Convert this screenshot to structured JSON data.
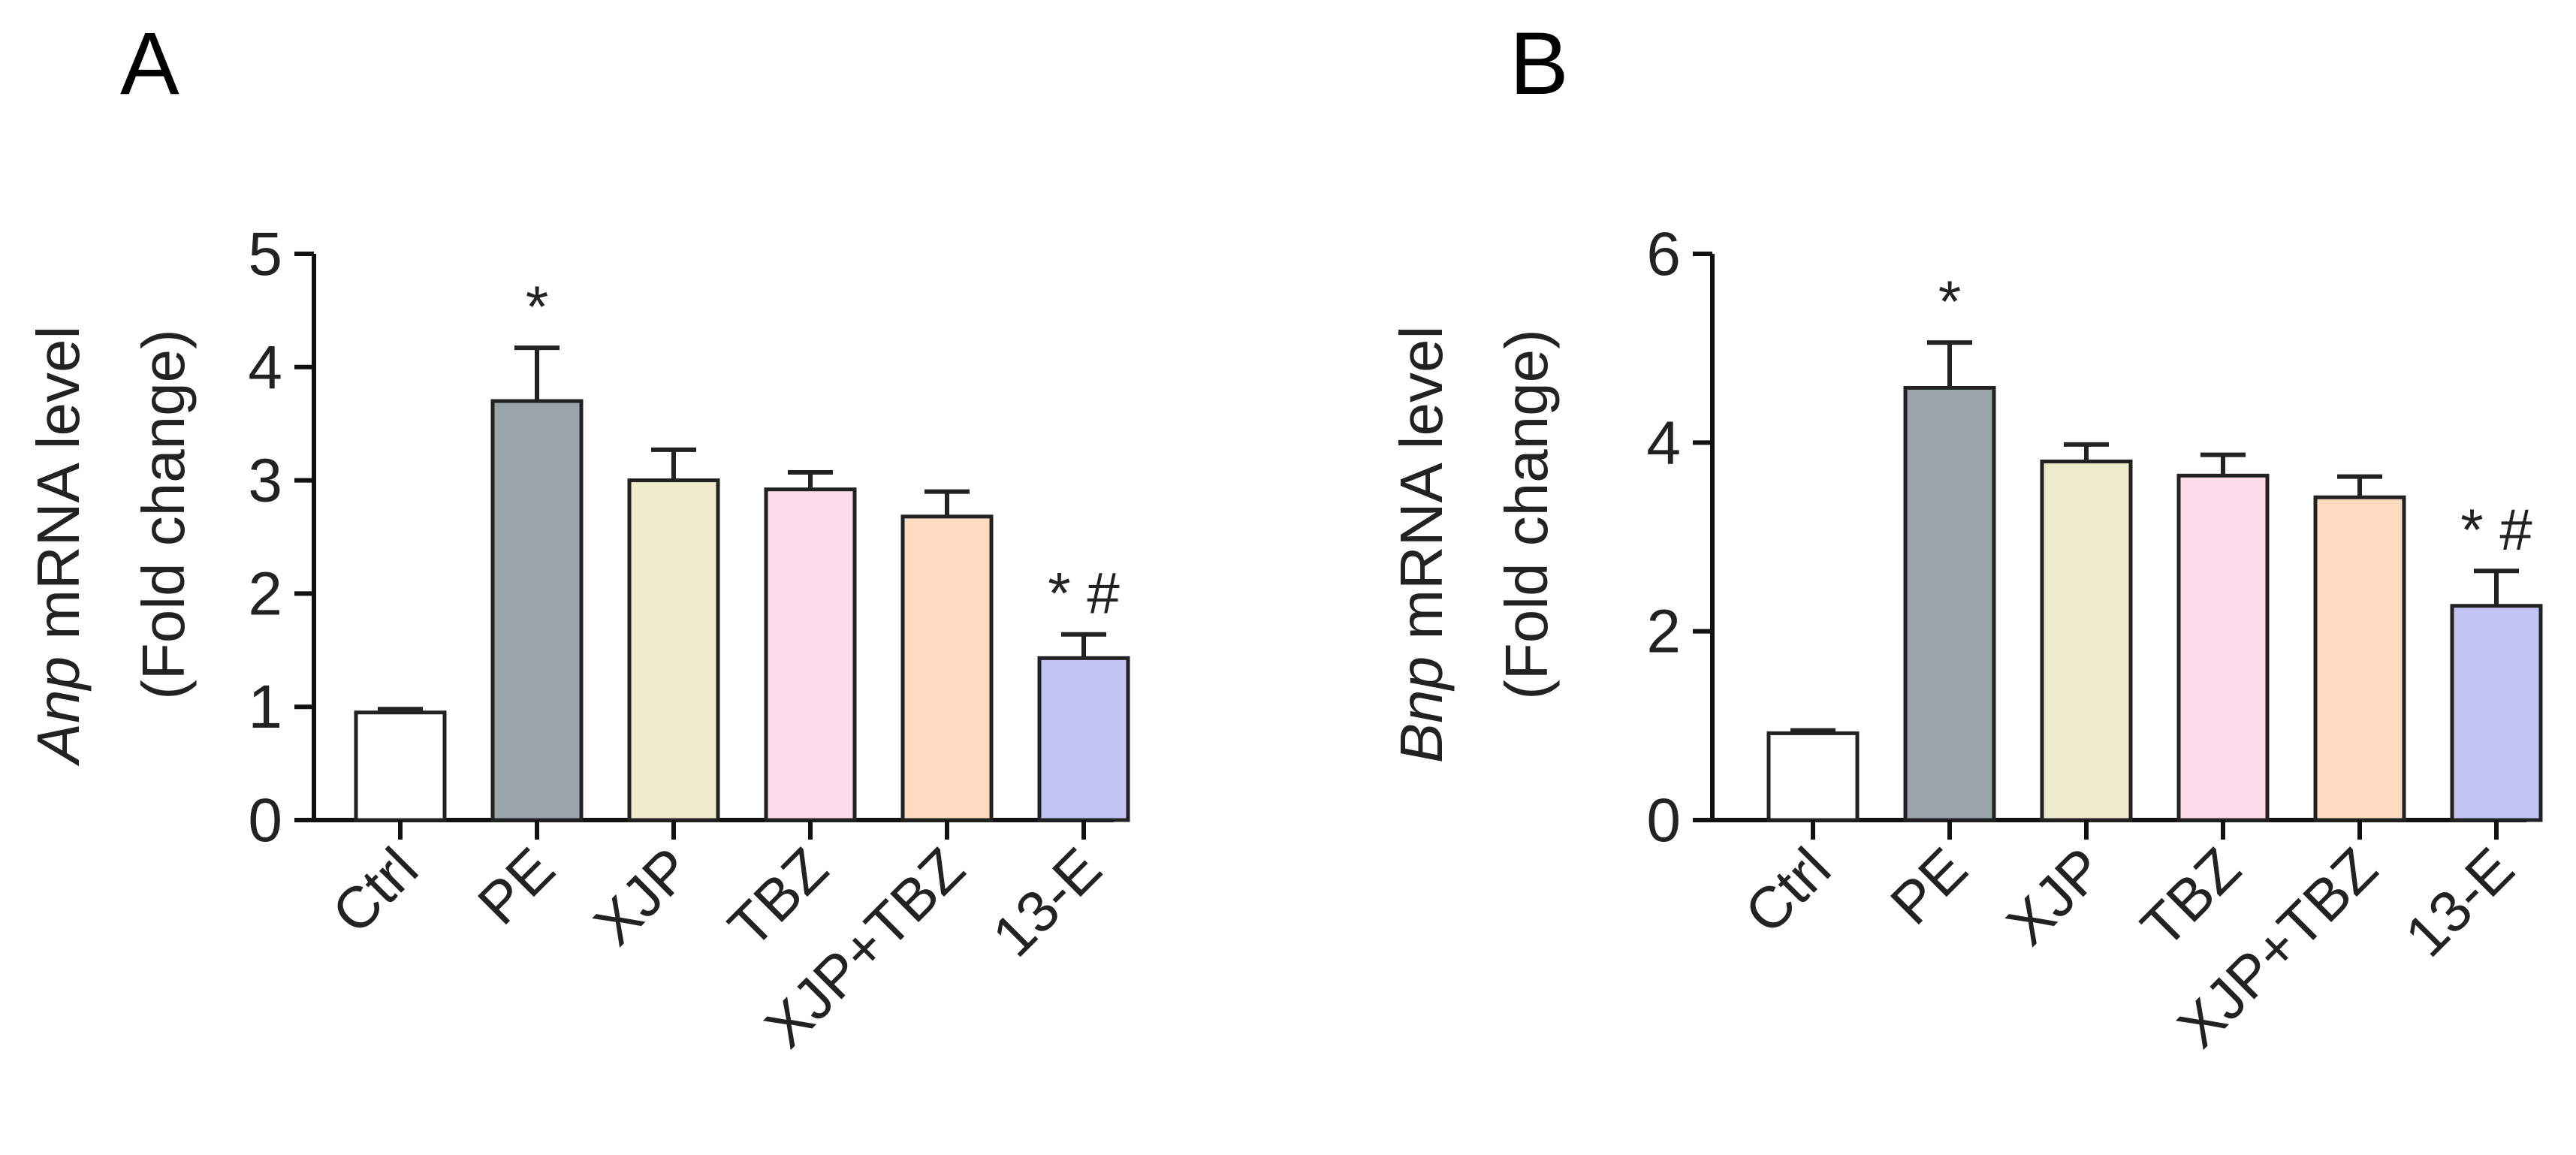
{
  "chart_data": [
    {
      "type": "bar",
      "panel": "A",
      "ylabel_gene": "Anp",
      "ylabel_rest": " mRNA level",
      "ylabel_line2": "(Fold change)",
      "ylim": [
        0,
        5
      ],
      "yticks": [
        0,
        1,
        2,
        3,
        4,
        5
      ],
      "categories": [
        "Ctrl",
        "PE",
        "XJP",
        "TBZ",
        "XJP+TBZ",
        "13-E"
      ],
      "values": [
        0.95,
        3.7,
        3.0,
        2.92,
        2.68,
        1.43
      ],
      "errors": [
        0.03,
        0.47,
        0.27,
        0.15,
        0.22,
        0.21
      ],
      "colors": [
        "#ffffff",
        "#9aa5a9",
        "#eeeccb",
        "#fcdbe9",
        "#fddcc0",
        "#c4c4f3"
      ],
      "annotations": [
        "",
        "*",
        "",
        "",
        "",
        "* #"
      ]
    },
    {
      "type": "bar",
      "panel": "B",
      "ylabel_gene": "Bnp",
      "ylabel_rest": " mRNA level",
      "ylabel_line2": "(Fold change)",
      "ylim": [
        0,
        6
      ],
      "yticks": [
        0,
        2,
        4,
        6
      ],
      "categories": [
        "Ctrl",
        "PE",
        "XJP",
        "TBZ",
        "XJP+TBZ",
        "13-E"
      ],
      "values": [
        0.92,
        4.58,
        3.8,
        3.65,
        3.42,
        2.27
      ],
      "errors": [
        0.03,
        0.48,
        0.18,
        0.22,
        0.22,
        0.37
      ],
      "colors": [
        "#ffffff",
        "#9aa5a9",
        "#eeeccb",
        "#fcdbe9",
        "#fddcc0",
        "#c4c4f3"
      ],
      "annotations": [
        "",
        "*",
        "",
        "",
        "",
        "* #"
      ]
    }
  ]
}
